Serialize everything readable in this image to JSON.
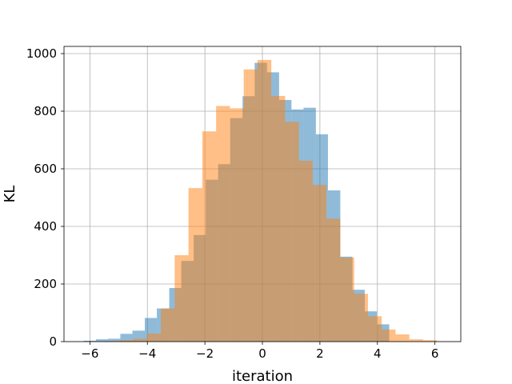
{
  "chart_data": {
    "type": "bar",
    "title": "",
    "xlabel": "iteration",
    "ylabel": "KL",
    "xlim": [
      -6.9,
      6.9
    ],
    "ylim": [
      0,
      1025
    ],
    "xticks": [
      -6,
      -4,
      -2,
      0,
      2,
      4,
      6
    ],
    "yticks": [
      0,
      200,
      400,
      600,
      800,
      1000
    ],
    "tick_labels_x": [
      "−6",
      "−4",
      "−2",
      "0",
      "2",
      "4",
      "6"
    ],
    "tick_labels_y": [
      "0",
      "200",
      "400",
      "600",
      "800",
      "1000"
    ],
    "grid": true,
    "legend": "none",
    "series": [
      {
        "color": "#1f77b4",
        "opacity": 0.5,
        "bin_edges": [
          -6.22,
          -5.79,
          -5.37,
          -4.94,
          -4.52,
          -4.09,
          -3.67,
          -3.24,
          -2.82,
          -2.39,
          -1.97,
          -1.54,
          -1.12,
          -0.69,
          -0.27,
          0.16,
          0.58,
          1.01,
          1.43,
          1.86,
          2.28,
          2.71,
          3.13,
          3.56,
          3.98,
          4.41
        ],
        "counts": [
          3,
          8,
          10,
          27,
          38,
          82,
          115,
          186,
          280,
          370,
          562,
          616,
          776,
          852,
          968,
          935,
          839,
          806,
          812,
          720,
          525,
          295,
          180,
          105,
          60
        ]
      },
      {
        "color": "#ff7f0e",
        "opacity": 0.5,
        "bin_edges": [
          -5.93,
          -5.45,
          -4.97,
          -4.49,
          -4.01,
          -3.53,
          -3.05,
          -2.57,
          -2.09,
          -1.61,
          -1.13,
          -0.65,
          -0.17,
          0.31,
          0.79,
          1.27,
          1.75,
          2.23,
          2.71,
          3.19,
          3.67,
          4.15,
          4.63,
          5.11,
          5.59,
          6.07
        ],
        "counts": [
          1,
          2,
          5,
          10,
          28,
          115,
          300,
          533,
          730,
          818,
          810,
          945,
          978,
          853,
          763,
          628,
          544,
          427,
          292,
          166,
          88,
          42,
          25,
          8,
          5
        ]
      }
    ]
  }
}
